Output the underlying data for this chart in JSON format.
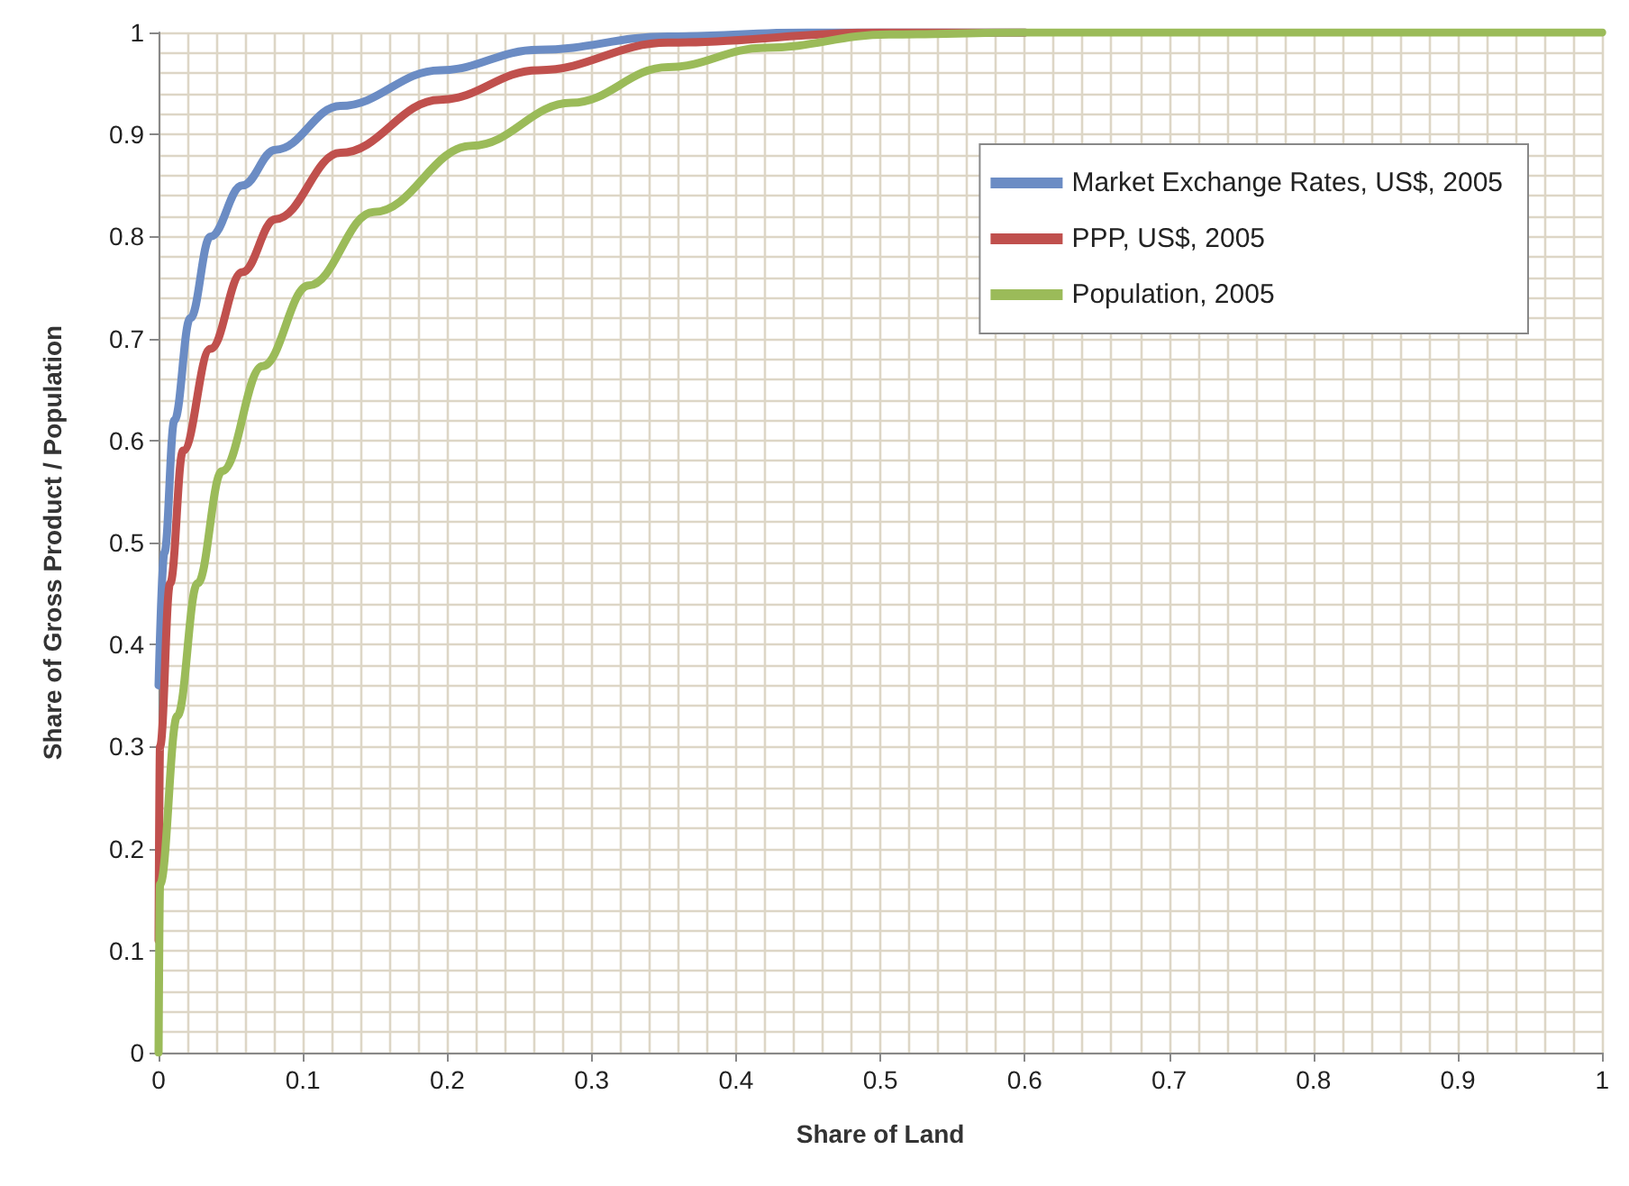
{
  "chart_data": {
    "type": "line",
    "xlabel": "Share of Land",
    "ylabel": "Share of Gross Product / Population",
    "xlim": [
      0,
      1
    ],
    "ylim": [
      0,
      1
    ],
    "xticks": [
      0,
      0.1,
      0.2,
      0.3,
      0.4,
      0.5,
      0.6,
      0.7,
      0.8,
      0.9,
      1
    ],
    "yticks": [
      0,
      0.1,
      0.2,
      0.3,
      0.4,
      0.5,
      0.6,
      0.7,
      0.8,
      0.9,
      1
    ],
    "grid": true,
    "legend": "top right",
    "marker": "none",
    "line_style": "solid",
    "series": [
      {
        "name": "Market Exchange Rates, US$, 2005",
        "color": "#6b8cc4",
        "x": [
          0,
          0.004,
          0.011,
          0.022,
          0.036,
          0.058,
          0.081,
          0.126,
          0.195,
          0.263,
          0.353,
          0.45,
          0.6
        ],
        "values": [
          0.36,
          0.49,
          0.62,
          0.72,
          0.8,
          0.85,
          0.885,
          0.928,
          0.963,
          0.983,
          0.996,
          1,
          1
        ]
      },
      {
        "name": "PPP, US$, 2005",
        "color": "#c0504d",
        "x": [
          0,
          0.001,
          0.008,
          0.017,
          0.036,
          0.058,
          0.081,
          0.126,
          0.195,
          0.263,
          0.353,
          0.5,
          0.6
        ],
        "values": [
          0.11,
          0.3,
          0.46,
          0.59,
          0.69,
          0.765,
          0.817,
          0.882,
          0.934,
          0.963,
          0.99,
          1,
          1
        ]
      },
      {
        "name": "Population, 2005",
        "color": "#9bbb59",
        "x": [
          0,
          0.001,
          0.013,
          0.027,
          0.044,
          0.072,
          0.104,
          0.149,
          0.217,
          0.286,
          0.353,
          0.42,
          0.506,
          0.6,
          0.8,
          1
        ],
        "values": [
          0,
          0.165,
          0.33,
          0.46,
          0.57,
          0.673,
          0.752,
          0.824,
          0.889,
          0.931,
          0.966,
          0.985,
          0.998,
          1,
          1,
          1
        ]
      }
    ]
  }
}
